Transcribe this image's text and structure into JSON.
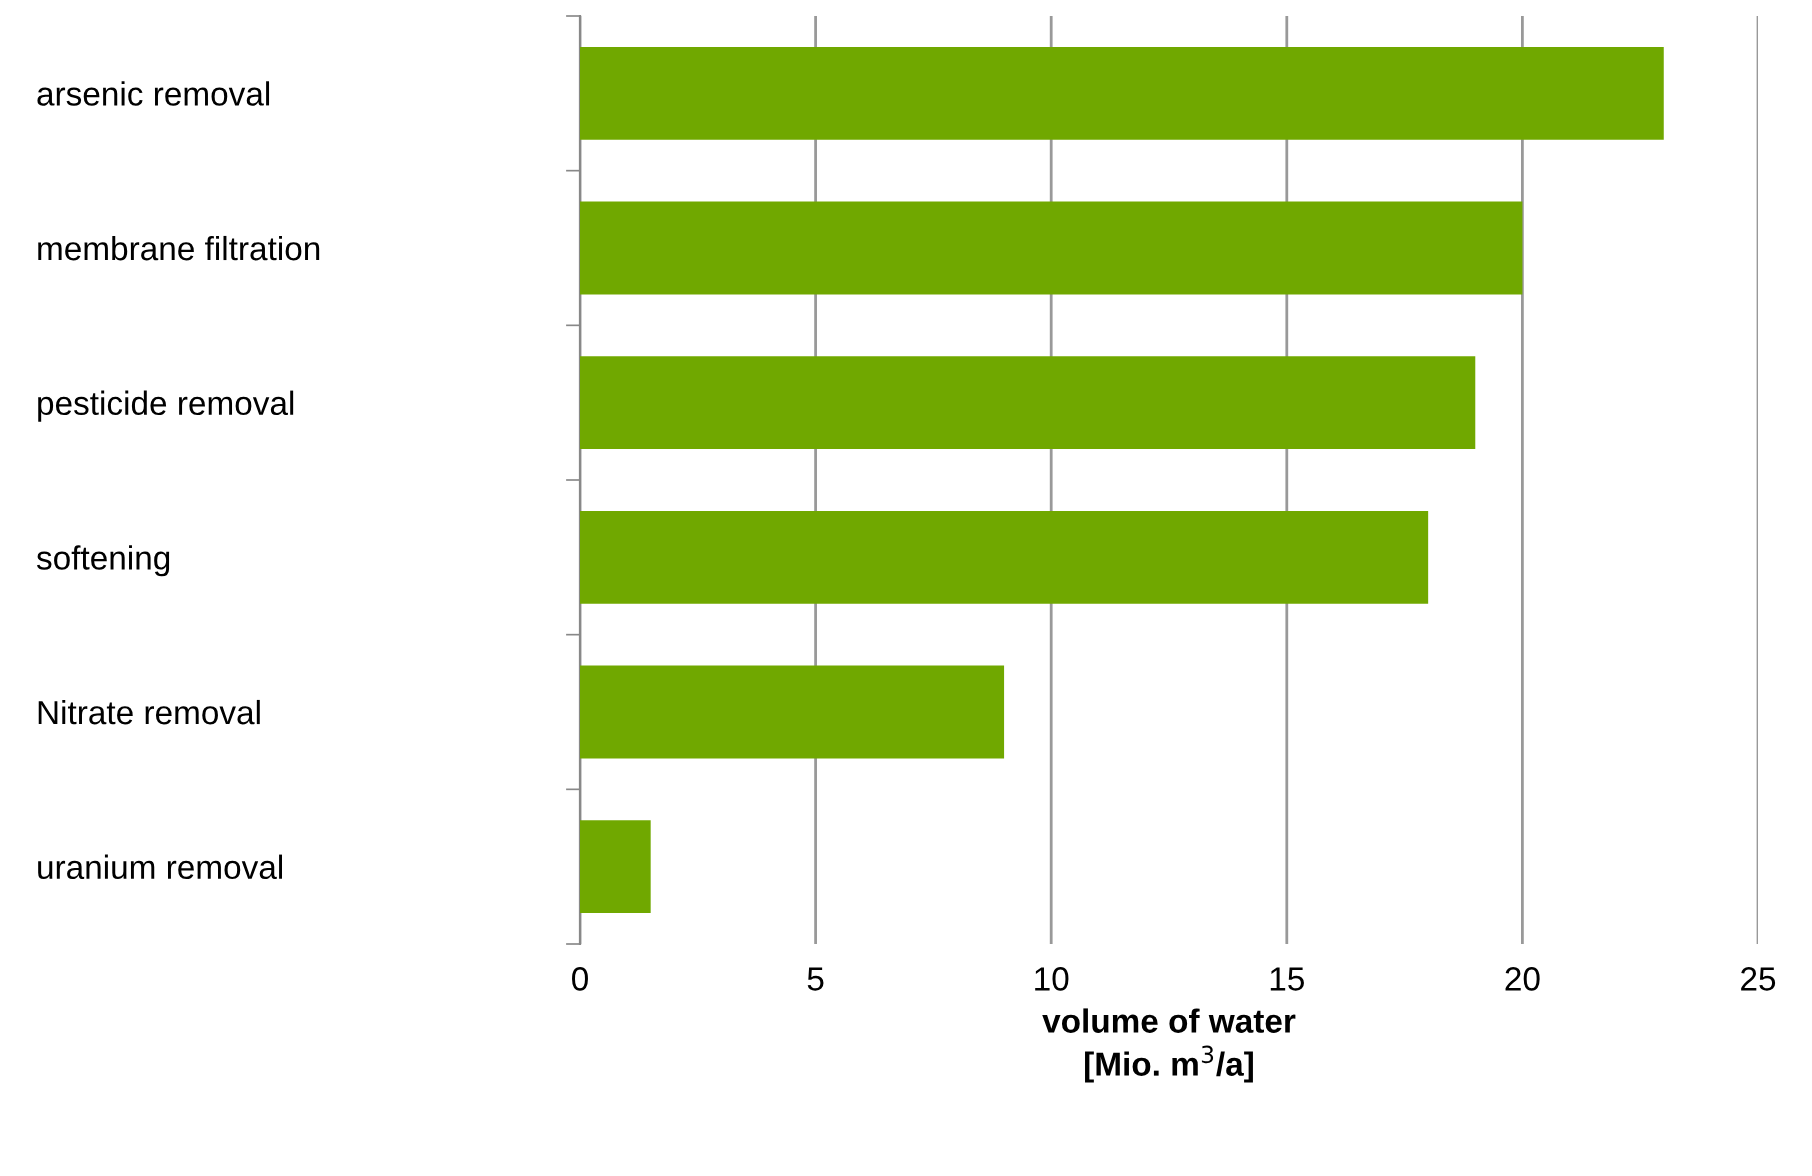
{
  "chart_data": {
    "type": "bar",
    "orientation": "horizontal",
    "categories": [
      "arsenic removal",
      "membrane filtration",
      "pesticide removal",
      "softening",
      "Nitrate removal",
      "uranium removal"
    ],
    "values": [
      23,
      20,
      19,
      18,
      9,
      1.5
    ],
    "color": "#70a800",
    "xlabel": "volume of water\n[Mio. m$^{3}$/a]",
    "xlim": [
      0,
      25
    ],
    "xticks": [
      0,
      5,
      10,
      15,
      20,
      25
    ],
    "grid": "x",
    "legend": false
  }
}
